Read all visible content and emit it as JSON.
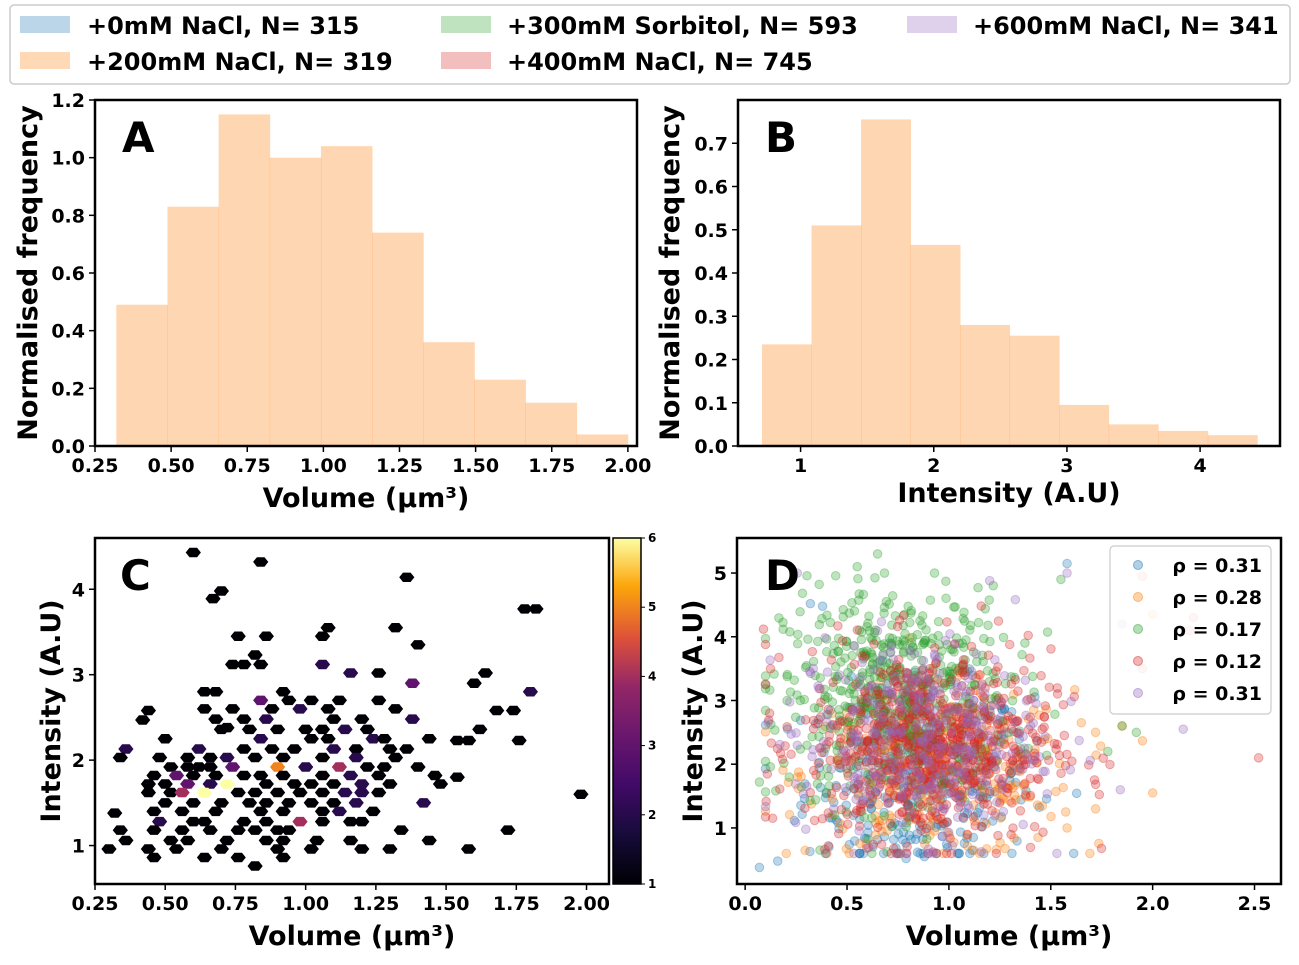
{
  "legend": {
    "placement": "top",
    "entries": [
      {
        "label": "+0mM NaCl, N= 315",
        "color": "#1f77b4"
      },
      {
        "label": "+200mM NaCl, N= 319",
        "color": "#ff7f0e"
      },
      {
        "label": "+300mM Sorbitol, N= 593",
        "color": "#2ca02c"
      },
      {
        "label": "+400mM NaCl, N= 745",
        "color": "#d62728"
      },
      {
        "label": "+600mM NaCl, N= 341",
        "color": "#9467bd"
      }
    ]
  },
  "chart_data": [
    {
      "panel": "A",
      "type": "bar",
      "title": "",
      "xlabel": "Volume (μm³)",
      "ylabel": "Normalised frequency",
      "xlim": [
        0.25,
        2.03
      ],
      "ylim": [
        0,
        1.2
      ],
      "xticks": [
        "0.25",
        "0.50",
        "0.75",
        "1.00",
        "1.25",
        "1.50",
        "1.75",
        "2.00"
      ],
      "yticks": [
        "0.0",
        "0.2",
        "0.4",
        "0.6",
        "0.8",
        "1.0",
        "1.2"
      ],
      "bin_edges": [
        0.32,
        0.488,
        0.656,
        0.824,
        0.992,
        1.16,
        1.328,
        1.496,
        1.664,
        1.832,
        2.0
      ],
      "values": [
        0.49,
        0.83,
        1.15,
        1.0,
        1.04,
        0.74,
        0.36,
        0.23,
        0.15,
        0.04
      ],
      "color": "#ff7f0e",
      "grid": false
    },
    {
      "panel": "B",
      "type": "bar",
      "title": "",
      "xlabel": "Intensity (A.U)",
      "ylabel": "Normalised frequency",
      "xlim": [
        0.53,
        4.6
      ],
      "ylim": [
        0,
        0.8
      ],
      "xticks": [
        "1",
        "2",
        "3",
        "4"
      ],
      "yticks": [
        "0.0",
        "0.1",
        "0.2",
        "0.3",
        "0.4",
        "0.5",
        "0.6",
        "0.7"
      ],
      "bin_edges": [
        0.71,
        1.082,
        1.454,
        1.826,
        2.198,
        2.57,
        2.942,
        3.314,
        3.686,
        4.058,
        4.43
      ],
      "values": [
        0.235,
        0.51,
        0.755,
        0.465,
        0.28,
        0.255,
        0.095,
        0.05,
        0.035,
        0.025
      ],
      "color": "#ff7f0e",
      "grid": false
    },
    {
      "panel": "C",
      "type": "heatmap",
      "title": "",
      "xlabel": "Volume (μm³)",
      "ylabel": "Intensity (A.U)",
      "xlim": [
        0.25,
        2.08
      ],
      "ylim": [
        0.55,
        4.6
      ],
      "xticks": [
        "0.25",
        "0.50",
        "0.75",
        "1.00",
        "1.25",
        "1.50",
        "1.75",
        "2.00"
      ],
      "yticks": [
        "1",
        "2",
        "3",
        "4"
      ],
      "colorbar": {
        "min": 1,
        "max": 6,
        "ticks": [
          "1",
          "2",
          "3",
          "4",
          "5",
          "6"
        ]
      },
      "colormap": "inferno",
      "cells": [
        [
          0.6,
          4.43,
          1
        ],
        [
          0.84,
          4.32,
          1
        ],
        [
          1.36,
          4.14,
          1
        ],
        [
          0.7,
          3.98,
          1
        ],
        [
          0.67,
          3.89,
          1
        ],
        [
          1.78,
          3.77,
          1
        ],
        [
          1.82,
          3.77,
          1
        ],
        [
          1.32,
          3.55,
          1
        ],
        [
          1.08,
          3.55,
          1
        ],
        [
          0.76,
          3.45,
          1
        ],
        [
          0.86,
          3.45,
          1
        ],
        [
          1.06,
          3.45,
          1
        ],
        [
          1.4,
          3.35,
          1
        ],
        [
          0.82,
          3.23,
          1
        ],
        [
          0.78,
          3.12,
          1
        ],
        [
          0.74,
          3.12,
          1
        ],
        [
          0.84,
          3.12,
          1
        ],
        [
          1.06,
          3.12,
          2
        ],
        [
          1.16,
          3.02,
          2
        ],
        [
          1.26,
          3.02,
          1
        ],
        [
          1.64,
          3.02,
          1
        ],
        [
          1.6,
          2.9,
          1
        ],
        [
          1.38,
          2.9,
          3
        ],
        [
          0.92,
          2.8,
          1
        ],
        [
          0.64,
          2.8,
          1
        ],
        [
          0.68,
          2.8,
          1
        ],
        [
          1.8,
          2.8,
          2
        ],
        [
          0.84,
          2.7,
          3
        ],
        [
          0.94,
          2.7,
          1
        ],
        [
          1.02,
          2.7,
          1
        ],
        [
          1.12,
          2.7,
          1
        ],
        [
          1.26,
          2.7,
          1
        ],
        [
          0.98,
          2.6,
          2
        ],
        [
          0.88,
          2.6,
          1
        ],
        [
          0.74,
          2.6,
          1
        ],
        [
          0.64,
          2.6,
          1
        ],
        [
          1.08,
          2.6,
          1
        ],
        [
          1.32,
          2.6,
          1
        ],
        [
          1.68,
          2.58,
          1
        ],
        [
          1.74,
          2.58,
          1
        ],
        [
          0.44,
          2.58,
          1
        ],
        [
          0.42,
          2.47,
          1
        ],
        [
          0.68,
          2.48,
          1
        ],
        [
          0.78,
          2.48,
          1
        ],
        [
          0.86,
          2.48,
          2
        ],
        [
          1.1,
          2.48,
          1
        ],
        [
          1.2,
          2.48,
          1
        ],
        [
          1.38,
          2.48,
          2
        ],
        [
          0.8,
          2.36,
          1
        ],
        [
          0.9,
          2.36,
          1
        ],
        [
          0.7,
          2.36,
          1
        ],
        [
          0.72,
          2.38,
          1
        ],
        [
          1.0,
          2.36,
          1
        ],
        [
          1.06,
          2.36,
          1
        ],
        [
          1.14,
          2.36,
          2
        ],
        [
          1.22,
          2.36,
          1
        ],
        [
          1.62,
          2.36,
          1
        ],
        [
          0.5,
          2.25,
          1
        ],
        [
          0.84,
          2.25,
          2
        ],
        [
          1.02,
          2.25,
          1
        ],
        [
          1.08,
          2.25,
          1
        ],
        [
          1.24,
          2.25,
          2
        ],
        [
          1.28,
          2.25,
          1
        ],
        [
          1.44,
          2.25,
          1
        ],
        [
          1.54,
          2.23,
          1
        ],
        [
          1.58,
          2.23,
          1
        ],
        [
          1.76,
          2.23,
          1
        ],
        [
          0.36,
          2.13,
          2
        ],
        [
          0.62,
          2.13,
          2
        ],
        [
          0.78,
          2.13,
          1
        ],
        [
          0.88,
          2.13,
          1
        ],
        [
          0.96,
          2.13,
          1
        ],
        [
          1.1,
          2.13,
          2
        ],
        [
          1.18,
          2.13,
          1
        ],
        [
          1.3,
          2.13,
          1
        ],
        [
          1.36,
          2.13,
          1
        ],
        [
          0.34,
          2.03,
          1
        ],
        [
          0.48,
          2.03,
          1
        ],
        [
          0.58,
          2.03,
          1
        ],
        [
          0.66,
          2.03,
          1
        ],
        [
          0.72,
          2.03,
          2
        ],
        [
          0.82,
          2.03,
          1
        ],
        [
          0.92,
          2.03,
          1
        ],
        [
          1.06,
          2.03,
          1
        ],
        [
          1.18,
          2.03,
          2
        ],
        [
          1.32,
          2.03,
          1
        ],
        [
          0.52,
          1.92,
          1
        ],
        [
          0.58,
          1.92,
          1
        ],
        [
          0.62,
          1.92,
          1
        ],
        [
          0.66,
          1.92,
          1
        ],
        [
          0.74,
          1.92,
          3
        ],
        [
          0.9,
          1.92,
          5
        ],
        [
          1.0,
          1.92,
          2
        ],
        [
          1.12,
          1.92,
          4
        ],
        [
          1.22,
          1.92,
          1
        ],
        [
          1.28,
          1.92,
          1
        ],
        [
          1.4,
          1.92,
          1
        ],
        [
          0.46,
          1.82,
          1
        ],
        [
          0.54,
          1.82,
          3
        ],
        [
          0.6,
          1.82,
          1
        ],
        [
          0.68,
          1.82,
          1
        ],
        [
          0.78,
          1.82,
          1
        ],
        [
          0.84,
          1.82,
          1
        ],
        [
          0.92,
          1.82,
          1
        ],
        [
          1.06,
          1.82,
          1
        ],
        [
          1.16,
          1.82,
          2
        ],
        [
          1.26,
          1.82,
          1
        ],
        [
          1.46,
          1.82,
          1
        ],
        [
          1.54,
          1.8,
          1
        ],
        [
          0.44,
          1.72,
          1
        ],
        [
          0.5,
          1.72,
          1
        ],
        [
          0.58,
          1.72,
          3
        ],
        [
          0.66,
          1.72,
          2
        ],
        [
          0.72,
          1.72,
          6
        ],
        [
          0.86,
          1.72,
          1
        ],
        [
          0.96,
          1.72,
          1
        ],
        [
          1.02,
          1.72,
          1
        ],
        [
          1.1,
          1.72,
          1
        ],
        [
          1.2,
          1.72,
          2
        ],
        [
          1.3,
          1.72,
          1
        ],
        [
          1.48,
          1.72,
          1
        ],
        [
          1.98,
          1.6,
          1
        ],
        [
          0.44,
          1.62,
          1
        ],
        [
          0.52,
          1.62,
          1
        ],
        [
          0.56,
          1.62,
          4
        ],
        [
          0.64,
          1.62,
          6
        ],
        [
          0.76,
          1.62,
          1
        ],
        [
          0.82,
          1.62,
          1
        ],
        [
          0.9,
          1.62,
          1
        ],
        [
          0.98,
          1.62,
          1
        ],
        [
          1.06,
          1.62,
          1
        ],
        [
          1.14,
          1.62,
          2
        ],
        [
          1.2,
          1.62,
          2
        ],
        [
          1.26,
          1.62,
          1
        ],
        [
          0.32,
          1.38,
          1
        ],
        [
          0.5,
          1.5,
          1
        ],
        [
          0.6,
          1.5,
          1
        ],
        [
          0.7,
          1.5,
          1
        ],
        [
          0.8,
          1.5,
          1
        ],
        [
          0.86,
          1.5,
          1
        ],
        [
          0.94,
          1.5,
          1
        ],
        [
          1.02,
          1.5,
          1
        ],
        [
          1.1,
          1.5,
          1
        ],
        [
          1.18,
          1.5,
          2
        ],
        [
          1.42,
          1.5,
          2
        ],
        [
          0.46,
          1.4,
          1
        ],
        [
          0.56,
          1.4,
          1
        ],
        [
          0.68,
          1.4,
          1
        ],
        [
          0.84,
          1.4,
          1
        ],
        [
          0.92,
          1.4,
          1
        ],
        [
          1.06,
          1.4,
          1
        ],
        [
          1.12,
          1.4,
          2
        ],
        [
          1.24,
          1.4,
          1
        ],
        [
          0.48,
          1.28,
          2
        ],
        [
          0.6,
          1.28,
          1
        ],
        [
          0.64,
          1.28,
          1
        ],
        [
          0.78,
          1.28,
          1
        ],
        [
          0.86,
          1.28,
          1
        ],
        [
          0.98,
          1.28,
          4
        ],
        [
          1.06,
          1.28,
          1
        ],
        [
          1.16,
          1.28,
          1
        ],
        [
          1.2,
          1.28,
          1
        ],
        [
          0.34,
          1.18,
          1
        ],
        [
          0.46,
          1.18,
          1
        ],
        [
          0.56,
          1.18,
          1
        ],
        [
          0.66,
          1.18,
          1
        ],
        [
          0.76,
          1.18,
          1
        ],
        [
          0.82,
          1.18,
          1
        ],
        [
          0.9,
          1.18,
          1
        ],
        [
          0.94,
          1.18,
          1
        ],
        [
          1.34,
          1.18,
          1
        ],
        [
          1.72,
          1.18,
          1
        ],
        [
          0.36,
          1.06,
          1
        ],
        [
          0.52,
          1.06,
          1
        ],
        [
          0.58,
          1.06,
          1
        ],
        [
          0.72,
          1.06,
          1
        ],
        [
          0.86,
          1.06,
          1
        ],
        [
          0.92,
          1.06,
          1
        ],
        [
          1.04,
          1.06,
          1
        ],
        [
          1.16,
          1.06,
          1
        ],
        [
          1.44,
          1.06,
          1
        ],
        [
          0.3,
          0.96,
          1
        ],
        [
          0.44,
          0.96,
          1
        ],
        [
          0.54,
          0.96,
          1
        ],
        [
          0.7,
          0.96,
          1
        ],
        [
          0.9,
          0.96,
          1
        ],
        [
          1.02,
          0.96,
          1
        ],
        [
          1.2,
          0.96,
          1
        ],
        [
          1.3,
          0.96,
          1
        ],
        [
          1.58,
          0.96,
          1
        ],
        [
          0.46,
          0.86,
          1
        ],
        [
          0.64,
          0.86,
          1
        ],
        [
          0.76,
          0.86,
          1
        ],
        [
          0.92,
          0.86,
          1
        ],
        [
          0.82,
          0.76,
          1
        ]
      ],
      "grid": false
    },
    {
      "panel": "D",
      "type": "scatter",
      "title": "",
      "xlabel": "Volume (μm³)",
      "ylabel": "Intensity (A.U)",
      "xlim": [
        -0.04,
        2.63
      ],
      "ylim": [
        0.12,
        5.55
      ],
      "xticks": [
        "0.0",
        "0.5",
        "1.0",
        "1.5",
        "2.0",
        "2.5"
      ],
      "yticks": [
        "1",
        "2",
        "3",
        "4",
        "5"
      ],
      "legend_placement": "top-right",
      "grid": false,
      "series": [
        {
          "key": "0mM",
          "label": "ρ = 0.31",
          "color": "#1f77b4",
          "n": 315,
          "x_center": 0.85,
          "x_spread": 0.28,
          "y_center": 1.75,
          "y_spread": 0.75,
          "points": [
            [
              0.07,
              0.38
            ],
            [
              0.16,
              0.48
            ],
            [
              0.32,
              4.52
            ],
            [
              0.38,
              4.48
            ],
            [
              1.58,
              5.15
            ],
            [
              0.79,
              0.52
            ],
            [
              0.88,
              0.55
            ],
            [
              1.12,
              0.85
            ]
          ]
        },
        {
          "key": "200mM",
          "label": "ρ = 0.28",
          "color": "#ff7f0e",
          "n": 319,
          "x_center": 0.95,
          "x_spread": 0.33,
          "y_center": 1.85,
          "y_spread": 0.65,
          "points": [
            [
              2.0,
              1.55
            ],
            [
              1.65,
              2.65
            ],
            [
              1.72,
              2.5
            ],
            [
              1.85,
              2.6
            ],
            [
              2.0,
              4.35
            ],
            [
              1.58,
              1.0
            ],
            [
              1.72,
              1.3
            ]
          ]
        },
        {
          "key": "300mM",
          "label": "ρ = 0.17",
          "color": "#2ca02c",
          "n": 593,
          "x_center": 0.75,
          "x_spread": 0.28,
          "y_center": 3.05,
          "y_spread": 0.85,
          "points": [
            [
              0.65,
              5.3
            ],
            [
              0.55,
              5.1
            ],
            [
              0.07,
              1.72
            ],
            [
              1.85,
              2.6
            ],
            [
              1.78,
              2.2
            ],
            [
              1.55,
              4.9
            ],
            [
              1.92,
              2.5
            ]
          ]
        },
        {
          "key": "400mM",
          "label": "ρ = 0.12",
          "color": "#d62728",
          "n": 745,
          "x_center": 0.9,
          "x_spread": 0.3,
          "y_center": 2.3,
          "y_spread": 0.75,
          "points": [
            [
              0.09,
              4.12
            ],
            [
              2.52,
              2.1
            ],
            [
              2.18,
              4.1
            ],
            [
              1.95,
              4.95
            ],
            [
              0.12,
              2.8
            ],
            [
              2.2,
              4.3
            ],
            [
              1.95,
              3.5
            ]
          ]
        },
        {
          "key": "600mM",
          "label": "ρ = 0.31",
          "color": "#9467bd",
          "n": 341,
          "x_center": 0.85,
          "x_spread": 0.3,
          "y_center": 2.4,
          "y_spread": 0.8,
          "points": [
            [
              1.58,
              5.0
            ],
            [
              1.2,
              4.88
            ],
            [
              1.85,
              4.2
            ],
            [
              2.15,
              2.55
            ]
          ]
        }
      ]
    }
  ]
}
